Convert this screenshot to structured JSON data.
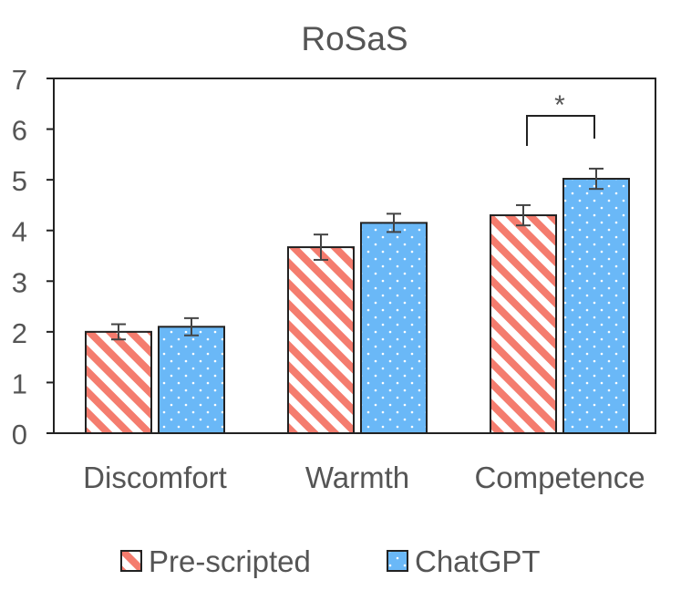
{
  "chart_data": {
    "type": "bar",
    "title": "RoSaS",
    "xlabel": "",
    "ylabel": "",
    "ylim": [
      0,
      7
    ],
    "yticks": [
      0,
      1,
      2,
      3,
      4,
      5,
      6,
      7
    ],
    "grid": false,
    "categories": [
      "Discomfort",
      "Warmth",
      "Competence"
    ],
    "series": [
      {
        "name": "Pre-scripted",
        "values": [
          2.0,
          3.67,
          4.3
        ],
        "errors": [
          0.15,
          0.25,
          0.2
        ],
        "color": "#f47c6e",
        "pattern": "diagonal-stripes"
      },
      {
        "name": "ChatGPT",
        "values": [
          2.1,
          4.15,
          5.02
        ],
        "errors": [
          0.17,
          0.18,
          0.2
        ],
        "color": "#6ab8f7",
        "pattern": "dots"
      }
    ],
    "annotations": [
      {
        "text": "*",
        "category": "Competence",
        "between": [
          "Pre-scripted",
          "ChatGPT"
        ]
      }
    ],
    "legend": {
      "position": "bottom-center"
    }
  }
}
